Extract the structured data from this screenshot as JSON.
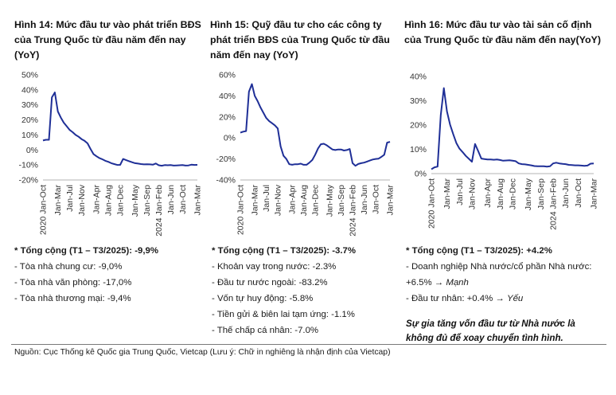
{
  "panels": [
    {
      "title": "Hình 14: Mức đầu tư vào phát triển BĐS của Trung Quốc từ đầu năm đến nay (YoY)",
      "total": "* Tổng cộng (T1 – T3/2025): -9,9%",
      "items": [
        "- Tòa nhà chung cư: -9,0%",
        "- Tòa nhà văn phòng: -17,0%",
        "- Tòa nhà thương mại: -9,4%"
      ]
    },
    {
      "title": "Hình 15: Quỹ đầu tư cho các công ty phát triển BĐS của Trung Quốc từ đầu năm đến nay (YoY)",
      "total": "* Tổng cộng (T1 – T3/2025): -3.7%",
      "items": [
        "- Khoản vay trong nước: -2.3%",
        "- Đầu tư nước ngoài: -83.2%",
        "- Vốn tự huy động: -5.8%",
        "- Tiền gửi & biên lai tạm ứng: -1.1%",
        "- Thế chấp cá nhân: -7.0%"
      ]
    },
    {
      "title": "Hình 16: Mức đầu tư vào tài sản cố định của Trung Quốc từ đầu năm đến nay(YoY)",
      "total": "* Tổng cộng (T1 – T3/2025): +4.2%",
      "item1_text": "- Doanh nghiệp Nhà nước/cổ phần Nhà nước: +6.5% → ",
      "item1_tag": "Mạnh",
      "item2_text": "- Đầu tư nhân: +0.4% → ",
      "item2_tag": "Yếu",
      "remark": "Sự gia tăng vốn đầu tư từ Nhà nước là không đủ để xoay chuyển tình hình."
    }
  ],
  "source": "Nguồn: Cục Thống kê Quốc gia Trung Quốc, Vietcap (Lưu ý: Chữ in nghiêng là nhận định của Vietcap)",
  "line_color": "#1f2f97",
  "chart_data": [
    {
      "type": "line",
      "ylim": [
        -20,
        50
      ],
      "yticks": [
        "-20%",
        "-10%",
        "0%",
        "10%",
        "20%",
        "30%",
        "40%",
        "50%"
      ],
      "ytick_values": [
        -20,
        -10,
        0,
        10,
        20,
        30,
        40,
        50
      ],
      "xticks": [
        "2020 Jan-Oct",
        "Jan-Mar",
        "Jan-Jul",
        "Jan-Nov",
        "Jan-Apr",
        "Jan-Aug",
        "Jan-Dec",
        "Jan-May",
        "Jan-Sep",
        "2024 Jan-Feb",
        "Jan-Jun",
        "Jan-Oct",
        "Jan-Mar"
      ],
      "xtick_index": [
        0,
        5,
        9,
        13,
        18,
        22,
        26,
        31,
        35,
        39,
        43,
        47,
        52
      ],
      "series": [
        {
          "values": [
            6.3,
            6.8,
            6.8,
            35,
            38.3,
            25.6,
            21.6,
            18.2,
            15.8,
            13.3,
            11.8,
            10,
            8.8,
            7.2,
            6.1,
            4.4,
            0.7,
            -2.7,
            -4.2,
            -5.4,
            -6.2,
            -7.2,
            -7.9,
            -8.8,
            -9.4,
            -10.0,
            -9.9,
            -6.0,
            -6.8,
            -7.5,
            -8.2,
            -8.8,
            -9.1,
            -9.4,
            -9.6,
            -9.5,
            -9.6,
            -9.8,
            -9.0,
            -10.2,
            -10.5,
            -10.1,
            -10.2,
            -10.1,
            -10.4,
            -10.3,
            -10.2,
            -10.1,
            -10.4,
            -10.3,
            -9.8,
            -10.0,
            -9.9
          ]
        }
      ]
    },
    {
      "type": "line",
      "ylim": [
        -40,
        60
      ],
      "yticks": [
        "-40%",
        "-20%",
        "0%",
        "20%",
        "40%",
        "60%"
      ],
      "ytick_values": [
        -40,
        -20,
        0,
        20,
        40,
        60
      ],
      "xticks": [
        "2020 Jan-Oct",
        "Jan-Mar",
        "Jan-Jul",
        "Jan-Nov",
        "Jan-Apr",
        "Jan-Aug",
        "Jan-Dec",
        "Jan-May",
        "Jan-Sep",
        "2024 Jan-Feb",
        "Jan-Jun",
        "Jan-Oct",
        "Jan-Mar"
      ],
      "xtick_index": [
        0,
        5,
        9,
        13,
        18,
        22,
        26,
        31,
        35,
        39,
        43,
        47,
        52
      ],
      "series": [
        {
          "values": [
            5,
            6,
            6.5,
            44,
            51.2,
            40,
            35,
            29,
            24,
            19,
            16,
            14,
            12,
            9,
            -8,
            -17,
            -20,
            -25,
            -25.5,
            -25,
            -25,
            -24.5,
            -25.5,
            -25.5,
            -23.5,
            -21,
            -16,
            -10,
            -6,
            -5.5,
            -7,
            -9,
            -11,
            -11.5,
            -11,
            -11,
            -12,
            -11.5,
            -10.5,
            -24,
            -26.5,
            -24.8,
            -24,
            -23.5,
            -22.5,
            -21.5,
            -20.5,
            -20,
            -19.8,
            -18,
            -16,
            -4.5,
            -3.7
          ]
        }
      ]
    },
    {
      "type": "line",
      "ylim": [
        0,
        40
      ],
      "yticks": [
        "0%",
        "10%",
        "20%",
        "30%",
        "40%"
      ],
      "ytick_values": [
        0,
        10,
        20,
        30,
        40
      ],
      "xticks": [
        "2020 Jan-Oct",
        "Jan-Mar",
        "Jan-Jul",
        "Jan-Nov",
        "Jan-Apr",
        "Jan-Aug",
        "Jan-Dec",
        "Jan-May",
        "Jan-Sep",
        "2024 Jan-Feb",
        "Jan-Jun",
        "Jan-Oct",
        "Jan-Mar"
      ],
      "xtick_index": [
        0,
        5,
        9,
        13,
        18,
        22,
        26,
        31,
        35,
        39,
        43,
        47,
        52
      ],
      "series": [
        {
          "values": [
            1.8,
            2.6,
            2.9,
            24,
            35.2,
            25.6,
            20.2,
            16.2,
            12.6,
            10.3,
            8.9,
            7.3,
            6.1,
            4.9,
            12.2,
            9.3,
            6.2,
            6.0,
            5.8,
            5.8,
            5.7,
            5.8,
            5.6,
            5.3,
            5.4,
            5.5,
            5.3,
            5.1,
            4.2,
            3.9,
            3.8,
            3.6,
            3.4,
            3.1,
            3.0,
            3.0,
            3.0,
            2.9,
            3.0,
            4.2,
            4.5,
            4.2,
            4.0,
            3.9,
            3.6,
            3.5,
            3.4,
            3.4,
            3.3,
            3.2,
            3.3,
            4.1,
            4.2
          ]
        }
      ]
    }
  ]
}
